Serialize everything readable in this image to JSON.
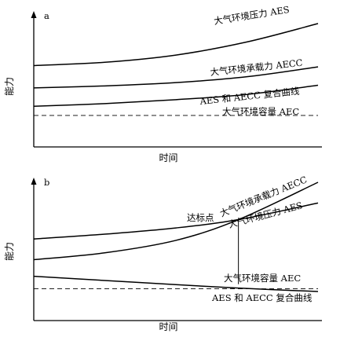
{
  "chart_data": [
    {
      "type": "line",
      "panel_label": "a",
      "xlabel": "时间",
      "ylabel": "能力",
      "x_ticks": false,
      "y_ticks": false,
      "series": [
        {
          "name": "大气环境压力 AES",
          "style": "solid",
          "x": [
            0,
            0.25,
            0.5,
            0.75,
            1.0
          ],
          "y": [
            0.62,
            0.645,
            0.7,
            0.8,
            0.94
          ]
        },
        {
          "name": "大气环境承载力 AECC",
          "style": "solid",
          "x": [
            0,
            0.25,
            0.5,
            0.75,
            1.0
          ],
          "y": [
            0.45,
            0.465,
            0.49,
            0.535,
            0.61
          ]
        },
        {
          "name": "AES 和 AECC 复合曲线",
          "style": "solid",
          "x": [
            0,
            0.25,
            0.5,
            0.75,
            1.0
          ],
          "y": [
            0.31,
            0.33,
            0.36,
            0.4,
            0.47
          ]
        },
        {
          "name": "大气环境容量 AEC",
          "style": "dashed",
          "x": [
            0,
            1.0
          ],
          "y": [
            0.24,
            0.24
          ]
        }
      ]
    },
    {
      "type": "line",
      "panel_label": "b",
      "xlabel": "时间",
      "ylabel": "能力",
      "x_ticks": false,
      "y_ticks": false,
      "annotation": {
        "text": "达标点",
        "x": 0.72
      },
      "series": [
        {
          "name": "大气环境承载力 AECC",
          "style": "solid",
          "x": [
            0,
            0.25,
            0.5,
            0.72,
            1.0
          ],
          "y": [
            0.44,
            0.49,
            0.58,
            0.73,
            1.0
          ]
        },
        {
          "name": "大气环境压力 AES",
          "style": "solid",
          "x": [
            0,
            0.25,
            0.5,
            0.72,
            1.0
          ],
          "y": [
            0.59,
            0.625,
            0.67,
            0.73,
            0.85
          ]
        },
        {
          "name": "大气环境容量 AEC",
          "style": "dashed",
          "x": [
            0,
            1.0
          ],
          "y": [
            0.23,
            0.23
          ]
        },
        {
          "name": "AES 和 AECC 复合曲线",
          "style": "solid",
          "x": [
            0,
            0.25,
            0.5,
            0.72,
            1.0
          ],
          "y": [
            0.32,
            0.29,
            0.26,
            0.235,
            0.21
          ]
        }
      ]
    }
  ]
}
